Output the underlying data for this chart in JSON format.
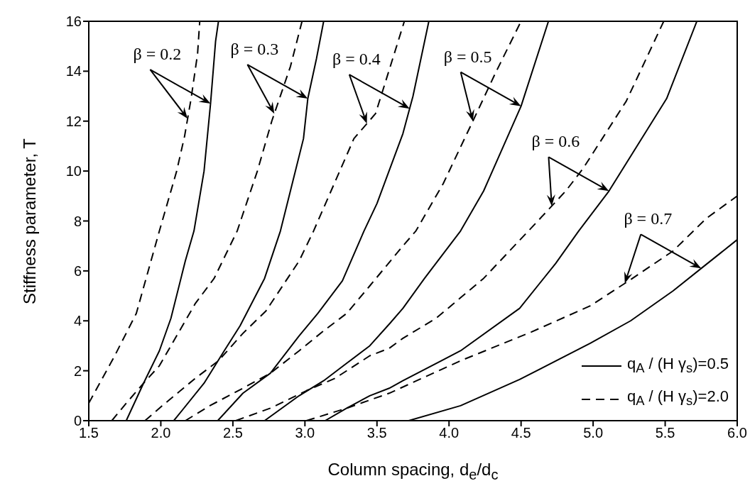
{
  "chart_data": {
    "type": "line",
    "xlabel": "Column spacing, d$_{e}$/d$_{c}$",
    "ylabel": "Stiffness parameter, T",
    "xlim": [
      1.5,
      6.0
    ],
    "xticks": [
      {
        "value": 1.5,
        "label": "1.5"
      },
      {
        "value": 2,
        "label": "2.0"
      },
      {
        "value": 2.5,
        "label": "2.5"
      },
      {
        "value": 3,
        "label": "3.0"
      },
      {
        "value": 3.5,
        "label": "3.5"
      },
      {
        "value": 4,
        "label": "4.0"
      },
      {
        "value": 4.5,
        "label": "4.5"
      },
      {
        "value": 5,
        "label": "5.0"
      },
      {
        "value": 5.5,
        "label": "5.5"
      },
      {
        "value": 6,
        "label": "6.0"
      }
    ],
    "ylim": [
      0,
      16
    ],
    "yticks": [
      0,
      2,
      4,
      6,
      8,
      10,
      12,
      14,
      16
    ],
    "legend": "bottom right",
    "marker": "none",
    "series": [
      {
        "name": "q$_{A}$ / (H γ$_{s}$)=0.5",
        "color": "#000000",
        "line_style": "solid",
        "x": [
          1.76,
          1.88,
          1.99,
          2.07,
          2.17,
          2.23,
          2.3,
          2.345,
          2.38,
          2.4
        ],
        "values": [
          0,
          1.5,
          2.8,
          4.1,
          6.4,
          7.6,
          10.0,
          12.7,
          15.2,
          16
        ]
      },
      {
        "name": "q$_{A}$ / (H γ$_{s}$)=2.0",
        "color": "#000000",
        "line_style": "dashed",
        "x": [
          1.5,
          1.68,
          1.83,
          1.99,
          2.11,
          2.165,
          2.21,
          2.255,
          2.27
        ],
        "values": [
          0.7,
          2.6,
          4.3,
          7.6,
          10.0,
          11.4,
          12.9,
          14.7,
          16
        ]
      },
      {
        "color": "#000000",
        "line_style": "solid",
        "x": [
          2.09,
          2.3,
          2.44,
          2.55,
          2.72,
          2.83,
          2.99,
          3.02,
          3.08,
          3.13
        ],
        "values": [
          0,
          1.5,
          2.8,
          3.8,
          5.7,
          7.6,
          11.3,
          12.9,
          14.5,
          16
        ]
      },
      {
        "color": "#000000",
        "line_style": "dashed",
        "x": [
          1.66,
          1.76,
          1.88,
          1.99,
          2.11,
          2.24,
          2.37,
          2.53,
          2.67,
          2.77,
          2.9,
          2.98
        ],
        "values": [
          0,
          0.7,
          1.5,
          2.2,
          3.4,
          4.7,
          5.7,
          7.6,
          10.0,
          12.0,
          14.2,
          16
        ]
      },
      {
        "color": "#000000",
        "line_style": "solid",
        "x": [
          2.395,
          2.57,
          2.76,
          2.96,
          3.09,
          3.26,
          3.41,
          3.5,
          3.68,
          3.75,
          3.86
        ],
        "values": [
          0,
          1.1,
          1.9,
          3.4,
          4.3,
          5.6,
          7.6,
          8.7,
          11.5,
          13.0,
          16
        ]
      },
      {
        "color": "#000000",
        "line_style": "dashed",
        "x": [
          1.89,
          2.01,
          2.24,
          2.4,
          2.57,
          2.73,
          2.96,
          3.06,
          3.34,
          3.49,
          3.62,
          3.69
        ],
        "values": [
          0,
          0.6,
          1.7,
          2.4,
          3.5,
          4.4,
          6.4,
          7.6,
          11.3,
          12.3,
          14.7,
          16
        ]
      },
      {
        "color": "#000000",
        "line_style": "solid",
        "x": [
          2.72,
          2.96,
          3.13,
          3.29,
          3.45,
          3.59,
          3.68,
          3.83,
          4.08,
          4.24,
          4.5,
          4.69
        ],
        "values": [
          0,
          1.0,
          1.6,
          2.3,
          3.0,
          3.9,
          4.5,
          5.7,
          7.6,
          9.2,
          12.6,
          16
        ]
      },
      {
        "color": "#000000",
        "line_style": "dashed",
        "x": [
          2.17,
          2.34,
          2.57,
          2.76,
          2.96,
          3.13,
          3.29,
          3.45,
          3.68,
          3.77,
          3.96,
          4.19,
          4.32,
          4.5
        ],
        "values": [
          0,
          0.6,
          1.3,
          1.9,
          2.8,
          3.6,
          4.3,
          5.4,
          7.0,
          7.6,
          9.5,
          12.3,
          13.9,
          16
        ]
      },
      {
        "color": "#000000",
        "line_style": "solid",
        "x": [
          3.14,
          3.29,
          3.45,
          3.585,
          3.68,
          4.08,
          4.49,
          4.74,
          4.9,
          5.11,
          5.51,
          5.72
        ],
        "values": [
          0,
          0.5,
          1.0,
          1.3,
          1.6,
          2.8,
          4.5,
          6.3,
          7.6,
          9.2,
          12.9,
          16
        ]
      },
      {
        "color": "#000000",
        "line_style": "dashed",
        "x": [
          2.52,
          2.76,
          3.01,
          3.21,
          3.45,
          3.585,
          3.68,
          3.91,
          4.24,
          4.6,
          4.81,
          4.93,
          5.23,
          5.49
        ],
        "values": [
          0,
          0.5,
          1.2,
          1.7,
          2.6,
          2.9,
          3.3,
          4.1,
          5.7,
          7.9,
          9.2,
          10.1,
          12.8,
          16
        ]
      },
      {
        "color": "#000000",
        "line_style": "solid",
        "x": [
          3.72,
          4.08,
          4.49,
          4.98,
          5.26,
          5.555,
          5.75,
          6.0
        ],
        "values": [
          0,
          0.6,
          1.65,
          3.1,
          4.0,
          5.2,
          6.1,
          7.25
        ]
      },
      {
        "color": "#000000",
        "line_style": "dashed",
        "x": [
          3.01,
          3.29,
          3.585,
          4.08,
          4.57,
          4.98,
          5.26,
          5.555,
          5.785,
          6.0
        ],
        "values": [
          0,
          0.5,
          1.1,
          2.4,
          3.55,
          4.6,
          5.65,
          6.8,
          8.1,
          9.0
        ]
      }
    ],
    "annotations": [
      {
        "text": "β = 0.2",
        "x": 2.345,
        "y": 12.7
      },
      {
        "text": "β = 0.3",
        "x": 3.02,
        "y": 12.9
      },
      {
        "text": "β = 0.4",
        "x": 3.727,
        "y": 12.5
      },
      {
        "text": "β = 0.5",
        "x": 4.5,
        "y": 12.6
      },
      {
        "text": "β = 0.6",
        "x": 5.11,
        "y": 9.2
      },
      {
        "text": "β = 0.7",
        "x": 5.75,
        "y": 6.1
      }
    ]
  }
}
